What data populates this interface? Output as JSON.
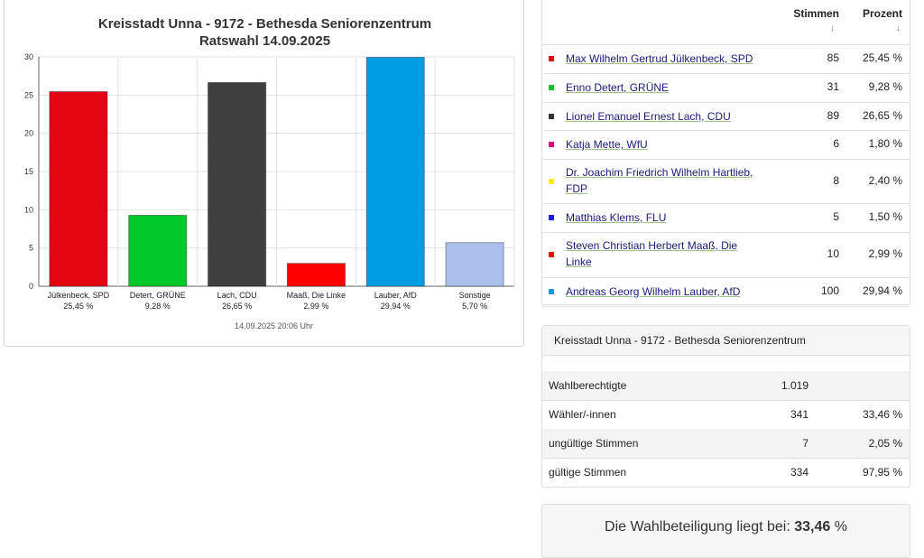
{
  "chart": {
    "title_line1": "Kreisstadt Unna - 9172 - Bethesda Seniorenzentrum",
    "title_line2": "Ratswahl 14.09.2025",
    "footer": "14.09.2025 20:06 Uhr"
  },
  "chart_data": {
    "type": "bar",
    "categories": [
      "Jülkenbeck, SPD",
      "Detert, GRÜNE",
      "Lach, CDU",
      "Maaß, Die Linke",
      "Lauber, AfD",
      "Sonstige"
    ],
    "value_labels": [
      "25,45 %",
      "9,28 %",
      "26,65 %",
      "2,99 %",
      "29,94 %",
      "5,70 %"
    ],
    "values": [
      25.45,
      9.28,
      26.65,
      2.99,
      29.94,
      5.7
    ],
    "colors": [
      "#e30613",
      "#00c82a",
      "#404040",
      "#ff0000",
      "#009ee0",
      "#aabfea"
    ],
    "ylim": [
      0,
      30
    ],
    "yticks": [
      0,
      5,
      10,
      15,
      20,
      25,
      30
    ],
    "grid": true
  },
  "results": {
    "col_votes": "Stimmen",
    "col_percent": "Prozent",
    "sort_arrow": "↓",
    "rows": [
      {
        "name": "Max Wilhelm Gertrud Jülkenbeck, SPD",
        "votes": "85",
        "percent": "25,45 %",
        "color": "#e30613"
      },
      {
        "name": "Enno Detert, GRÜNE",
        "votes": "31",
        "percent": "9,28 %",
        "color": "#00c82a"
      },
      {
        "name": "Lionel Emanuel Ernest Lach, CDU",
        "votes": "89",
        "percent": "26,65 %",
        "color": "#333333"
      },
      {
        "name": "Katja Mette, WfU",
        "votes": "6",
        "percent": "1,80 %",
        "color": "#e2007a"
      },
      {
        "name": "Dr. Joachim Friedrich Wilhelm Hartlieb, FDP",
        "votes": "8",
        "percent": "2,40 %",
        "color": "#ffed00"
      },
      {
        "name": "Matthias Klems, FLU",
        "votes": "5",
        "percent": "1,50 %",
        "color": "#1a1ae6"
      },
      {
        "name": "Steven Christian Herbert Maaß, Die Linke",
        "votes": "10",
        "percent": "2,99 %",
        "color": "#ff0000"
      },
      {
        "name": "Andreas Georg Wilhelm Lauber, AfD",
        "votes": "100",
        "percent": "29,94 %",
        "color": "#009ee0"
      }
    ]
  },
  "stats": {
    "title": "Kreisstadt Unna - 9172 - Bethesda Seniorenzentrum",
    "rows": [
      {
        "label": "Wahlberechtigte",
        "value": "1.019",
        "percent": ""
      },
      {
        "label": "Wähler/-innen",
        "value": "341",
        "percent": "33,46 %"
      },
      {
        "label": "ungültige Stimmen",
        "value": "7",
        "percent": "2,05 %"
      },
      {
        "label": "gültige Stimmen",
        "value": "334",
        "percent": "97,95 %"
      }
    ]
  },
  "turnout": {
    "prefix": "Die Wahlbeteiligung liegt bei:",
    "value": "33,46",
    "suffix": "%"
  }
}
